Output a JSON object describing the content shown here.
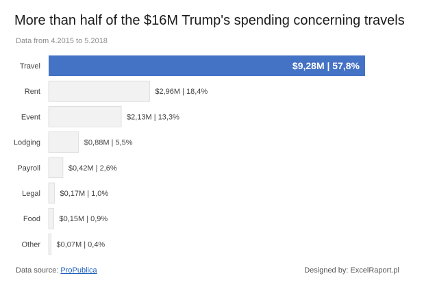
{
  "chart_data": {
    "type": "bar",
    "orientation": "horizontal",
    "title": "More than half of the $16M Trump's spending concerning travels",
    "subtitle": "Data from 4.2015 to 5.2018",
    "categories": [
      "Travel",
      "Rent",
      "Event",
      "Lodging",
      "Payroll",
      "Legal",
      "Food",
      "Other"
    ],
    "values": [
      9.28,
      2.96,
      2.13,
      0.88,
      0.42,
      0.17,
      0.15,
      0.07
    ],
    "data_labels": [
      "$9,28M | 57,8%",
      "$2,96M | 18,4%",
      "$2,13M | 13,3%",
      "$0,88M | 5,5%",
      "$0,42M | 2,6%",
      "$0,17M | 1,0%",
      "$0,15M | 0,9%",
      "$0,07M | 0,4%"
    ],
    "xlim": [
      0,
      9.28
    ],
    "highlight_index": 0,
    "colors": {
      "highlight": "#4472c4",
      "bar": "#f2f2f2",
      "bar_border": "#d0d0d0",
      "label": "#404040",
      "highlight_label": "#ffffff"
    }
  },
  "footer": {
    "source_prefix": "Data source: ",
    "source_link": "ProPublica",
    "credit": "Designed by: ExcelRaport.pl"
  }
}
